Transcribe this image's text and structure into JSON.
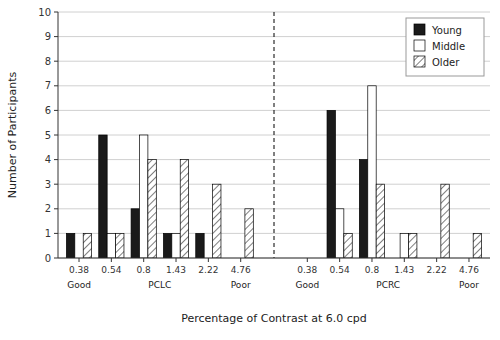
{
  "chart_data": {
    "type": "bar",
    "xlabel": "Percentage of Contrast at 6.0 cpd",
    "ylabel": "Number of Participants",
    "categories": [
      "0.38",
      "0.54",
      "0.8",
      "1.43",
      "2.22",
      "4.76",
      "0.38",
      "0.54",
      "0.8",
      "1.43",
      "2.22",
      "4.76"
    ],
    "series": [
      {
        "name": "Young",
        "color": "#1a1a1a",
        "values": [
          1,
          5,
          2,
          1,
          1,
          0,
          0,
          6,
          4,
          0,
          0,
          0
        ]
      },
      {
        "name": "Middle",
        "color": "#ffffff",
        "values": [
          0,
          1,
          5,
          1,
          0,
          0,
          0,
          2,
          7,
          1,
          0,
          0
        ]
      },
      {
        "name": "Older",
        "color": "#ffffff",
        "values": [
          1,
          1,
          4,
          4,
          3,
          2,
          0,
          1,
          3,
          1,
          3,
          1
        ]
      }
    ],
    "annotations": [
      "Good",
      "PCLC",
      "Poor",
      "Good",
      "PCRC",
      "Poor"
    ],
    "ylim": [
      0,
      10
    ],
    "yticks": [
      0,
      1,
      2,
      3,
      4,
      5,
      6,
      7,
      8,
      9,
      10
    ],
    "grid": true,
    "legend": "upper right"
  }
}
